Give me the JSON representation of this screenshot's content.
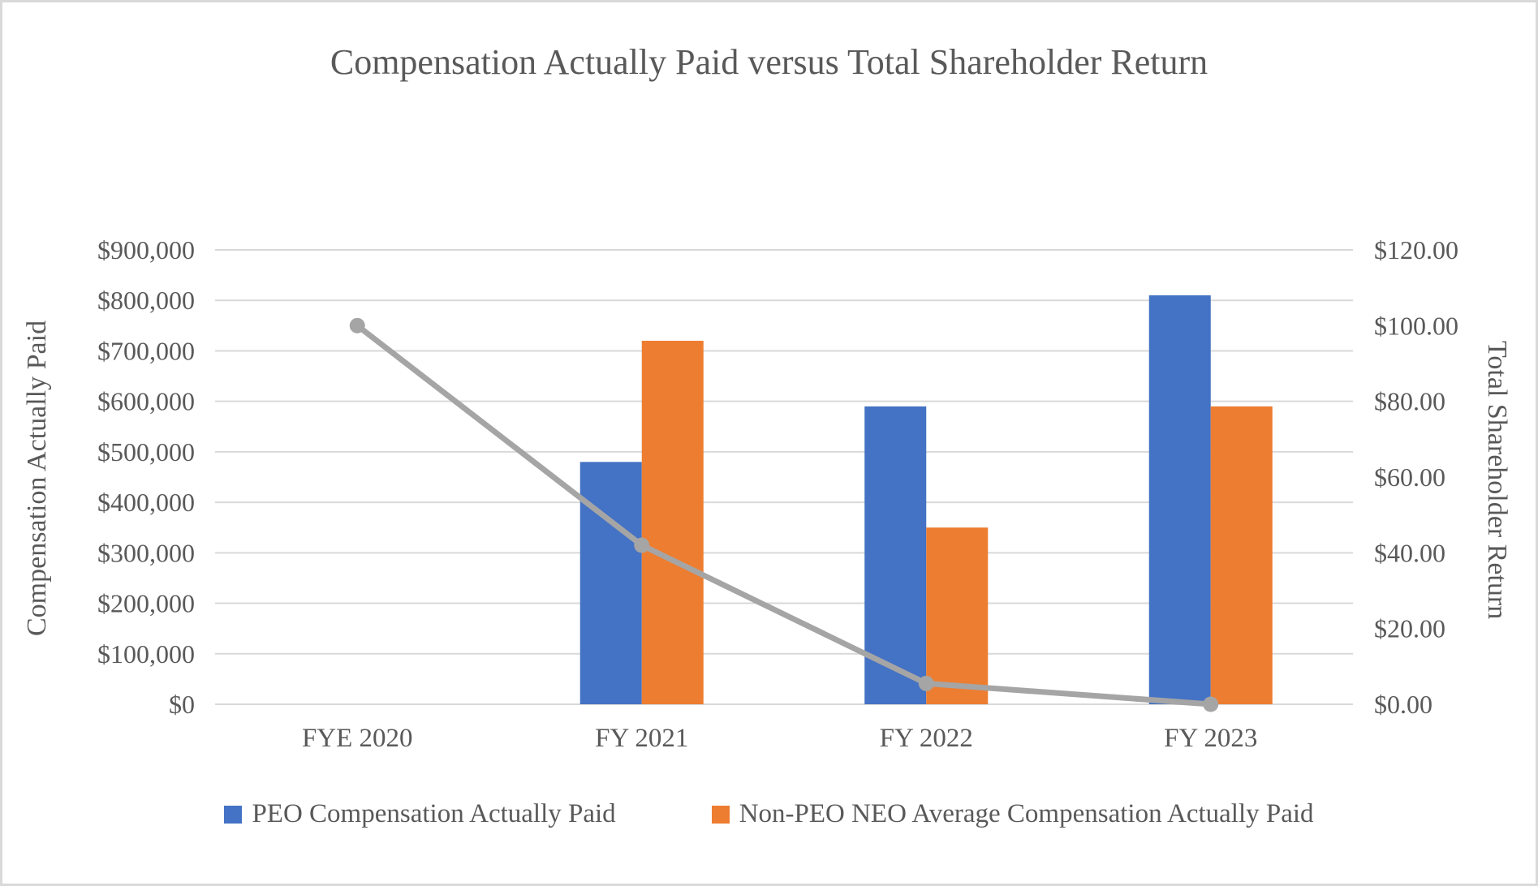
{
  "frame": {
    "background": "#FFFFFF",
    "border_color": "#D9D9D9"
  },
  "chart_data": {
    "type": "combo",
    "title": "Compensation Actually Paid versus Total Shareholder Return",
    "categories": [
      "FYE 2020",
      "FY 2021",
      "FY 2022",
      "FY 2023"
    ],
    "bar_series": [
      {
        "name": "PEO Compensation Actually Paid",
        "color": "#4472C4",
        "axis": "left",
        "values": [
          null,
          480000,
          590000,
          810000
        ]
      },
      {
        "name": "Non-PEO NEO Average Compensation Actually Paid",
        "color": "#ED7D31",
        "axis": "left",
        "values": [
          null,
          720000,
          350000,
          590000
        ]
      }
    ],
    "line_series": {
      "name": "Total Shareholder Return",
      "color": "#A5A5A5",
      "axis": "right",
      "values": [
        100,
        42,
        5.5,
        0
      ]
    },
    "left_axis": {
      "title": "Compensation Actually Paid",
      "min": 0,
      "max": 900000,
      "step": 100000,
      "tick_labels": [
        "$0",
        "$100,000",
        "$200,000",
        "$300,000",
        "$400,000",
        "$500,000",
        "$600,000",
        "$700,000",
        "$800,000",
        "$900,000"
      ]
    },
    "right_axis": {
      "title": "Total Shareholder Return",
      "min": 0,
      "max": 120,
      "step": 20,
      "tick_labels": [
        "$0.00",
        "$20.00",
        "$40.00",
        "$60.00",
        "$80.00",
        "$100.00",
        "$120.00"
      ]
    },
    "legend": [
      {
        "label": "PEO Compensation Actually Paid",
        "color": "#4472C4"
      },
      {
        "label": "Non-PEO NEO Average Compensation Actually Paid",
        "color": "#ED7D31"
      }
    ],
    "grid": "horizontal",
    "gridline_color": "#D9D9D9",
    "text_color": "#595959"
  }
}
